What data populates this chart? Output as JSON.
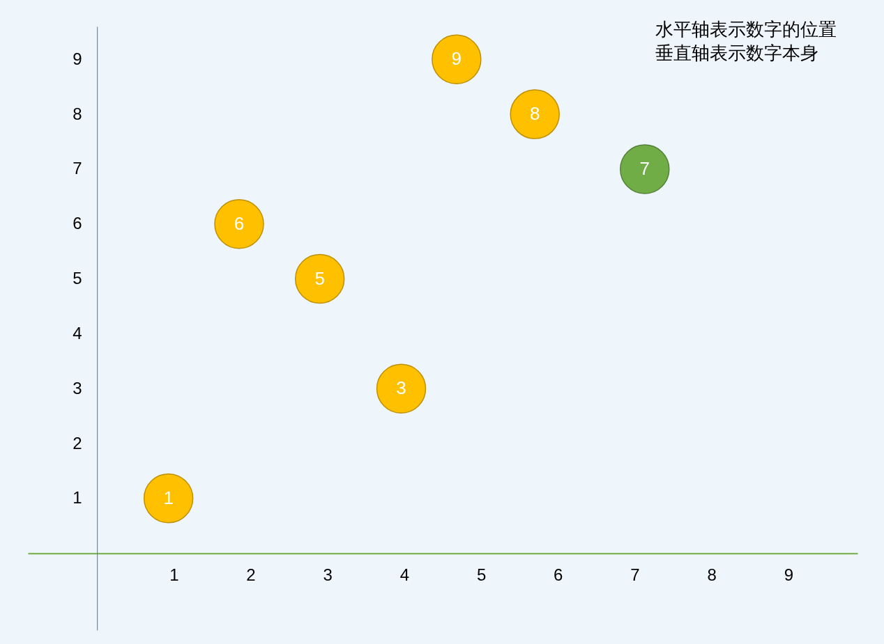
{
  "chart_data": {
    "type": "scatter",
    "x": [
      0.93,
      1.85,
      2.9,
      3.96,
      4.68,
      5.7,
      7.13
    ],
    "values": [
      1,
      6,
      5,
      3,
      9,
      8,
      7
    ],
    "colors": [
      "#ffc000",
      "#ffc000",
      "#ffc000",
      "#ffc000",
      "#ffc000",
      "#ffc000",
      "#70ad47"
    ],
    "data_labels": true,
    "marker": "circle",
    "grid": false,
    "xlim": [
      -0.9,
      9.9
    ],
    "ylim": [
      -1.4,
      9.6
    ],
    "xticks": [
      1,
      2,
      3,
      4,
      5,
      6,
      7,
      8,
      9
    ],
    "yticks": [
      1,
      2,
      3,
      4,
      5,
      6,
      7,
      8,
      9
    ],
    "annotations": [
      "水平轴表示数字的位置",
      "垂直轴表示数字本身"
    ]
  }
}
